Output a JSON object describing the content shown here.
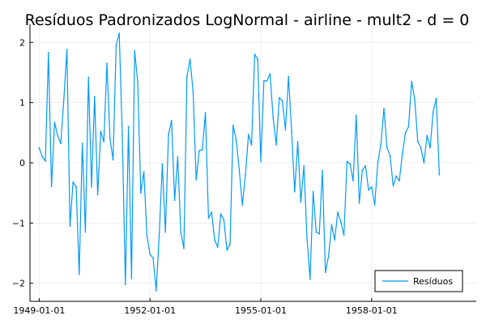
{
  "chart_data": {
    "type": "line",
    "title": "Resíduos Padronizados LogNormal - airline - mult2 - d = 0",
    "xlabel": "",
    "ylabel": "",
    "x_ticks": [
      "1949-01-01",
      "1952-01-01",
      "1955-01-01",
      "1958-01-01"
    ],
    "y_ticks": [
      "−2",
      "−1",
      "0",
      "1",
      "2"
    ],
    "x_start": "1949-01",
    "frequency": "monthly",
    "xlim": [
      "1948-10",
      "1960-11"
    ],
    "ylim": [
      -2.3,
      2.3
    ],
    "grid": true,
    "legend_position": "bottom-right",
    "series": [
      {
        "name": "Resíduos",
        "color": "#009AFA",
        "values": [
          0.25,
          0.1,
          0.03,
          1.83,
          -0.39,
          0.67,
          0.45,
          0.32,
          1.05,
          1.88,
          -1.05,
          -0.32,
          -0.4,
          -1.85,
          0.32,
          -1.15,
          1.42,
          -0.4,
          1.1,
          -0.53,
          0.52,
          0.35,
          1.65,
          0.4,
          0.05,
          1.95,
          2.15,
          0.45,
          -2.02,
          0.6,
          -1.92,
          1.86,
          1.35,
          -0.5,
          -0.15,
          -1.2,
          -1.52,
          -1.58,
          -2.12,
          -1.2,
          -0.02,
          -1.15,
          0.47,
          0.7,
          -0.62,
          0.1,
          -1.15,
          -1.42,
          1.43,
          1.72,
          1.18,
          -0.28,
          0.2,
          0.22,
          0.83,
          -0.92,
          -0.82,
          -1.28,
          -1.4,
          -0.85,
          -0.95,
          -1.45,
          -1.35,
          0.62,
          0.38,
          -0.12,
          -0.7,
          -0.2,
          0.47,
          0.3,
          1.8,
          1.72,
          0.02,
          1.36,
          1.36,
          1.48,
          0.75,
          0.3,
          1.08,
          1.03,
          0.55,
          1.43,
          0.52,
          -0.48,
          0.35,
          -0.65,
          -0.05,
          -1.25,
          -1.93,
          -0.48,
          -1.15,
          -1.18,
          -0.13,
          -1.82,
          -1.55,
          -1.03,
          -1.28,
          -0.82,
          -0.98,
          -1.2,
          0.02,
          -0.02,
          -0.3,
          0.79,
          -0.67,
          -0.12,
          -0.05,
          -0.45,
          -0.4,
          -0.7,
          0.0,
          0.3,
          0.9,
          0.25,
          0.12,
          -0.38,
          -0.22,
          -0.3,
          0.15,
          0.5,
          0.6,
          1.35,
          1.05,
          0.35,
          0.25,
          0.0,
          0.45,
          0.25,
          0.85,
          1.07,
          -0.2
        ]
      }
    ]
  }
}
